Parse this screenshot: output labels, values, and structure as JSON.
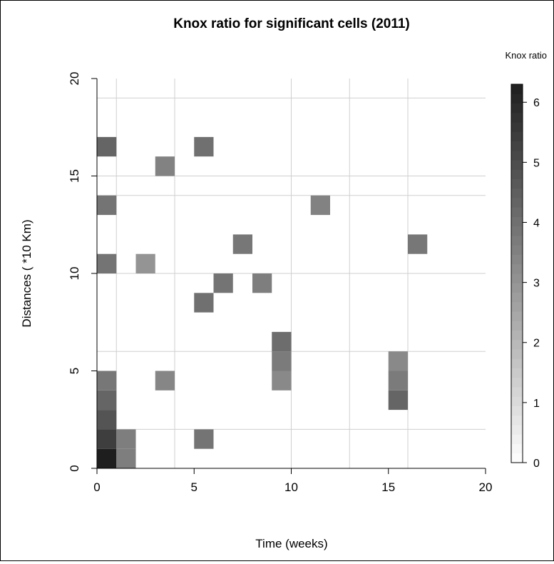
{
  "chart_data": {
    "type": "heatmap",
    "title": "Knox ratio for significant cells (2011)",
    "xlabel": "Time (weeks)",
    "ylabel": "Distances ( *10 Km)",
    "xlim": [
      0,
      20
    ],
    "ylim": [
      0,
      20
    ],
    "x_ticks": [
      "0",
      "5",
      "10",
      "15",
      "20"
    ],
    "y_ticks": [
      "0",
      "5",
      "10",
      "15",
      "20"
    ],
    "grid": true,
    "grid_x": [
      1,
      4,
      10,
      13,
      16
    ],
    "grid_y": [
      2,
      6,
      10,
      14,
      15,
      19
    ],
    "legend": {
      "title": "Knox ratio",
      "placement": "right",
      "min": 0,
      "max": 6.3,
      "ticks": [
        "0",
        "1",
        "2",
        "3",
        "4",
        "5",
        "6"
      ]
    },
    "cells": [
      {
        "x": 0,
        "y": 0,
        "value": 6.3
      },
      {
        "x": 0,
        "y": 1,
        "value": 5.4
      },
      {
        "x": 0,
        "y": 2,
        "value": 4.8
      },
      {
        "x": 0,
        "y": 3,
        "value": 4.3
      },
      {
        "x": 0,
        "y": 4,
        "value": 3.8
      },
      {
        "x": 0,
        "y": 10,
        "value": 3.9
      },
      {
        "x": 0,
        "y": 13,
        "value": 3.9
      },
      {
        "x": 0,
        "y": 16,
        "value": 4.3
      },
      {
        "x": 1,
        "y": 0,
        "value": 3.6
      },
      {
        "x": 1,
        "y": 1,
        "value": 3.6
      },
      {
        "x": 2,
        "y": 10,
        "value": 3.0
      },
      {
        "x": 3,
        "y": 4,
        "value": 3.4
      },
      {
        "x": 3,
        "y": 15,
        "value": 3.5
      },
      {
        "x": 5,
        "y": 1,
        "value": 3.9
      },
      {
        "x": 5,
        "y": 8,
        "value": 4.0
      },
      {
        "x": 5,
        "y": 16,
        "value": 4.0
      },
      {
        "x": 6,
        "y": 9,
        "value": 3.9
      },
      {
        "x": 7,
        "y": 11,
        "value": 3.8
      },
      {
        "x": 8,
        "y": 9,
        "value": 3.6
      },
      {
        "x": 9,
        "y": 4,
        "value": 3.3
      },
      {
        "x": 9,
        "y": 5,
        "value": 3.7
      },
      {
        "x": 9,
        "y": 6,
        "value": 4.1
      },
      {
        "x": 11,
        "y": 13,
        "value": 3.5
      },
      {
        "x": 15,
        "y": 3,
        "value": 4.3
      },
      {
        "x": 15,
        "y": 4,
        "value": 3.7
      },
      {
        "x": 15,
        "y": 5,
        "value": 3.3
      },
      {
        "x": 16,
        "y": 11,
        "value": 3.8
      }
    ]
  }
}
